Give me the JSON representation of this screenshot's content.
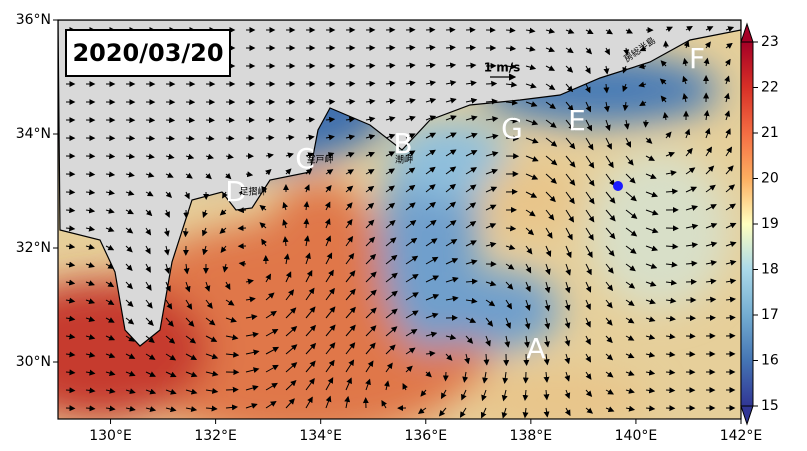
{
  "map": {
    "date": "2020/03/20",
    "scale_label": "1 m/s",
    "xlim": [
      129,
      142
    ],
    "ylim": [
      29,
      36
    ],
    "xticks": [
      {
        "value": 130,
        "label": "130°E"
      },
      {
        "value": 132,
        "label": "132°E"
      },
      {
        "value": 134,
        "label": "134°E"
      },
      {
        "value": 136,
        "label": "136°E"
      },
      {
        "value": 138,
        "label": "138°E"
      },
      {
        "value": 140,
        "label": "140°E"
      },
      {
        "value": 142,
        "label": "142°E"
      }
    ],
    "yticks": [
      {
        "value": 30,
        "label": "30°N"
      },
      {
        "value": 32,
        "label": "32°N"
      },
      {
        "value": 34,
        "label": "34°N"
      },
      {
        "value": 36,
        "label": "36°N"
      }
    ],
    "colorbar": {
      "lim": [
        15,
        23
      ],
      "ticks": [
        15,
        16,
        17,
        18,
        19,
        20,
        21,
        22,
        23
      ]
    },
    "region_labels": [
      "A",
      "B",
      "C",
      "D",
      "E",
      "F",
      "G"
    ],
    "place_names": [
      "室戸岬",
      "潮岬",
      "足摺岬",
      "房総半島"
    ]
  }
}
